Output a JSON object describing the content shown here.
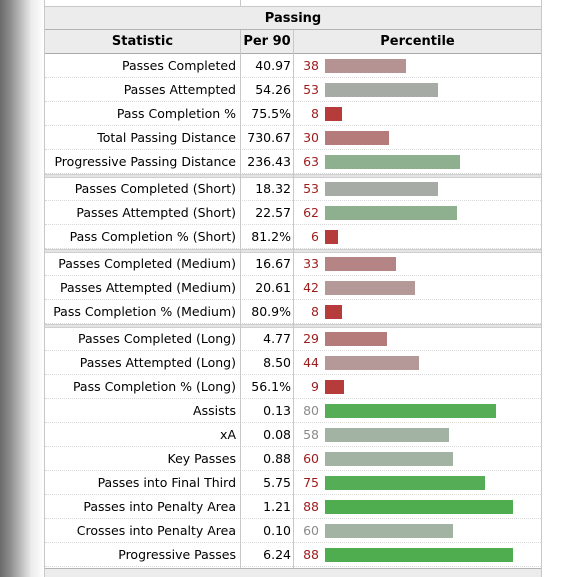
{
  "section_title": "Passing",
  "columns": [
    "Statistic",
    "Per 90",
    "Percentile"
  ],
  "colors": {
    "very_low": "#b63b3b",
    "low": "#b57a7a",
    "below_avg": "#b59999",
    "average": "#a6b0a6",
    "above_avg": "#8fb08f",
    "high": "#55ad55",
    "low_pct_text": "#9c1c1c",
    "mid_pct_text": "#8a8a8a"
  },
  "rows": [
    {
      "stat": "Passes Completed",
      "per90": "40.97",
      "pct": "38",
      "pct_value": 38,
      "bar_color": "#b59393",
      "pct_color": "#9c1c1c"
    },
    {
      "stat": "Passes Attempted",
      "per90": "54.26",
      "pct": "53",
      "pct_value": 53,
      "bar_color": "#a6aba6",
      "pct_color": "#9c1c1c"
    },
    {
      "stat": "Pass Completion %",
      "per90": "75.5%",
      "pct": "8",
      "pct_value": 8,
      "bar_color": "#b63b3b",
      "pct_color": "#9c1c1c"
    },
    {
      "stat": "Total Passing Distance",
      "per90": "730.67",
      "pct": "30",
      "pct_value": 30,
      "bar_color": "#b57a7a",
      "pct_color": "#9c1c1c"
    },
    {
      "stat": "Progressive Passing Distance",
      "per90": "236.43",
      "pct": "63",
      "pct_value": 63,
      "bar_color": "#8fb08f",
      "pct_color": "#9c1c1c"
    },
    {
      "stat": "Passes Completed (Short)",
      "per90": "18.32",
      "pct": "53",
      "pct_value": 53,
      "bar_color": "#a6aba6",
      "pct_color": "#9c1c1c"
    },
    {
      "stat": "Passes Attempted (Short)",
      "per90": "22.57",
      "pct": "62",
      "pct_value": 62,
      "bar_color": "#8fb08f",
      "pct_color": "#9c1c1c"
    },
    {
      "stat": "Pass Completion % (Short)",
      "per90": "81.2%",
      "pct": "6",
      "pct_value": 6,
      "bar_color": "#b63b3b",
      "pct_color": "#9c1c1c"
    },
    {
      "stat": "Passes Completed (Medium)",
      "per90": "16.67",
      "pct": "33",
      "pct_value": 33,
      "bar_color": "#b58585",
      "pct_color": "#9c1c1c"
    },
    {
      "stat": "Passes Attempted (Medium)",
      "per90": "20.61",
      "pct": "42",
      "pct_value": 42,
      "bar_color": "#b59999",
      "pct_color": "#9c1c1c"
    },
    {
      "stat": "Pass Completion % (Medium)",
      "per90": "80.9%",
      "pct": "8",
      "pct_value": 8,
      "bar_color": "#b63b3b",
      "pct_color": "#9c1c1c"
    },
    {
      "stat": "Passes Completed (Long)",
      "per90": "4.77",
      "pct": "29",
      "pct_value": 29,
      "bar_color": "#b57a7a",
      "pct_color": "#9c1c1c"
    },
    {
      "stat": "Passes Attempted (Long)",
      "per90": "8.50",
      "pct": "44",
      "pct_value": 44,
      "bar_color": "#b59999",
      "pct_color": "#9c1c1c"
    },
    {
      "stat": "Pass Completion % (Long)",
      "per90": "56.1%",
      "pct": "9",
      "pct_value": 9,
      "bar_color": "#b63b3b",
      "pct_color": "#9c1c1c"
    },
    {
      "stat": "Assists",
      "per90": "0.13",
      "pct": "80",
      "pct_value": 80,
      "bar_color": "#55ad55",
      "pct_color": "#8a8a8a"
    },
    {
      "stat": "xA",
      "per90": "0.08",
      "pct": "58",
      "pct_value": 58,
      "bar_color": "#a3b3a3",
      "pct_color": "#8a8a8a"
    },
    {
      "stat": "Key Passes",
      "per90": "0.88",
      "pct": "60",
      "pct_value": 60,
      "bar_color": "#a3b3a3",
      "pct_color": "#9c1c1c"
    },
    {
      "stat": "Passes into Final Third",
      "per90": "5.75",
      "pct": "75",
      "pct_value": 75,
      "bar_color": "#55ad55",
      "pct_color": "#9c1c1c"
    },
    {
      "stat": "Passes into Penalty Area",
      "per90": "1.21",
      "pct": "88",
      "pct_value": 88,
      "bar_color": "#4fad4f",
      "pct_color": "#9c1c1c"
    },
    {
      "stat": "Crosses into Penalty Area",
      "per90": "0.10",
      "pct": "60",
      "pct_value": 60,
      "bar_color": "#a3b3a3",
      "pct_color": "#8a8a8a"
    },
    {
      "stat": "Progressive Passes",
      "per90": "6.24",
      "pct": "88",
      "pct_value": 88,
      "bar_color": "#4fad4f",
      "pct_color": "#9c1c1c"
    }
  ]
}
